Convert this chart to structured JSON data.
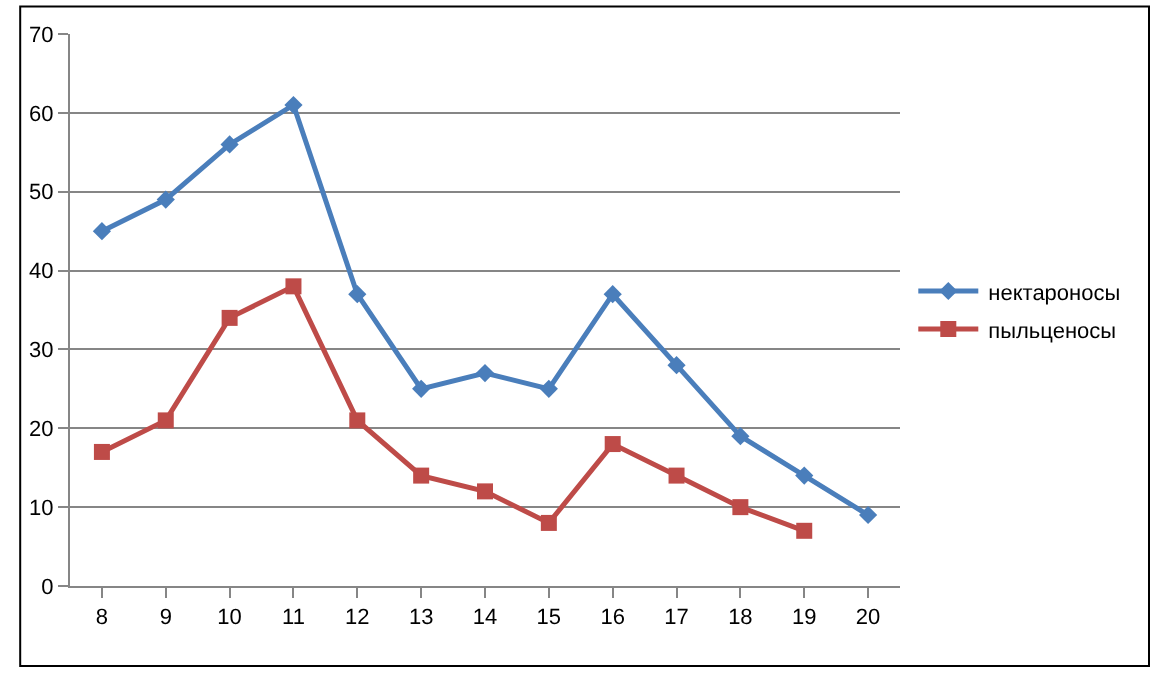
{
  "chart_data": {
    "type": "line",
    "categories": [
      "8",
      "9",
      "10",
      "11",
      "12",
      "13",
      "14",
      "15",
      "16",
      "17",
      "18",
      "19",
      "20"
    ],
    "series": [
      {
        "name": "нектароносы",
        "color": "#4a7ebb",
        "marker": "diamond",
        "values": [
          45,
          49,
          56,
          61,
          37,
          25,
          27,
          25,
          37,
          28,
          19,
          14,
          9
        ]
      },
      {
        "name": "пыльценосы",
        "color": "#be4b48",
        "marker": "square",
        "values": [
          17,
          21,
          34,
          38,
          21,
          14,
          12,
          8,
          18,
          14,
          10,
          7,
          null
        ]
      }
    ],
    "ylim": [
      0,
      70
    ],
    "yticks": [
      0,
      10,
      20,
      30,
      40,
      50,
      60,
      70
    ],
    "grid": "y",
    "legend": "right",
    "line_style": "solid"
  }
}
